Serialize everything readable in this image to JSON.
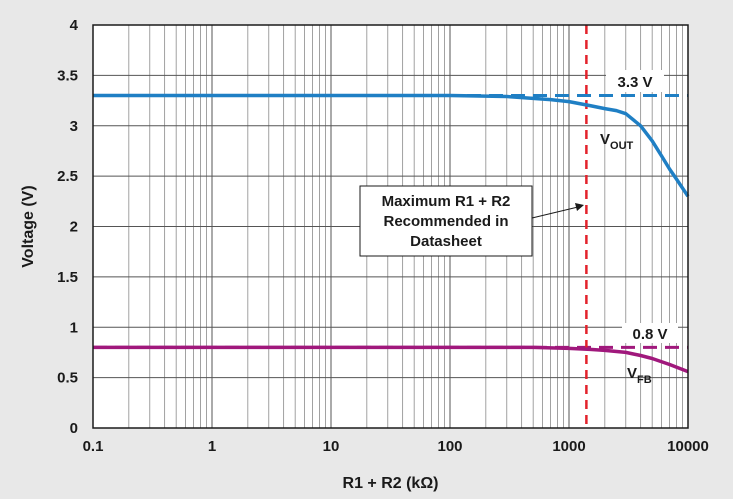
{
  "chart_data": {
    "type": "line",
    "title": "",
    "xlabel": "R1 + R2 (kΩ)",
    "ylabel": "Voltage (V)",
    "x_scale": "log",
    "xlim": [
      0.1,
      10000
    ],
    "ylim": [
      0,
      4
    ],
    "grid": true,
    "x_tick_labels": [
      "0.1",
      "1",
      "10",
      "100",
      "1000",
      "10000"
    ],
    "y_tick_labels": [
      "0",
      "0.5",
      "1",
      "1.5",
      "2",
      "2.5",
      "3",
      "3.5",
      "4"
    ],
    "series": [
      {
        "name": "VOUT",
        "color": "#1f7fc4",
        "x": [
          0.1,
          1,
          10,
          100,
          300,
          700,
          1000,
          1500,
          2000,
          2500,
          3000,
          4000,
          5000,
          6000,
          7000,
          8000,
          10000
        ],
        "y": [
          3.3,
          3.3,
          3.3,
          3.3,
          3.29,
          3.26,
          3.24,
          3.2,
          3.17,
          3.15,
          3.12,
          3.0,
          2.85,
          2.7,
          2.57,
          2.47,
          2.3
        ]
      },
      {
        "name": "VFB",
        "color": "#a0187c",
        "x": [
          0.1,
          1,
          10,
          100,
          500,
          1000,
          1500,
          2000,
          3000,
          4000,
          5000,
          7000,
          10000
        ],
        "y": [
          0.8,
          0.8,
          0.8,
          0.8,
          0.8,
          0.79,
          0.78,
          0.77,
          0.75,
          0.72,
          0.69,
          0.63,
          0.56
        ]
      }
    ],
    "reference_lines": [
      {
        "name": "3.3 V",
        "axis": "y",
        "value": 3.3,
        "color": "#1f7fc4",
        "style": "dashed"
      },
      {
        "name": "0.8 V",
        "axis": "y",
        "value": 0.8,
        "color": "#a0187c",
        "style": "dashed"
      },
      {
        "name": "max-recommended",
        "axis": "x",
        "value": 1400,
        "color": "#e3222b",
        "style": "dashed"
      }
    ],
    "annotations": {
      "ref_33_label": "3.3 V",
      "ref_08_label": "0.8 V",
      "vout_label_main": "V",
      "vout_label_sub": "OUT",
      "vfb_label_main": "V",
      "vfb_label_sub": "FB",
      "callout_lines": [
        "Maximum R1 + R2",
        "Recommended in",
        "Datasheet"
      ]
    }
  }
}
